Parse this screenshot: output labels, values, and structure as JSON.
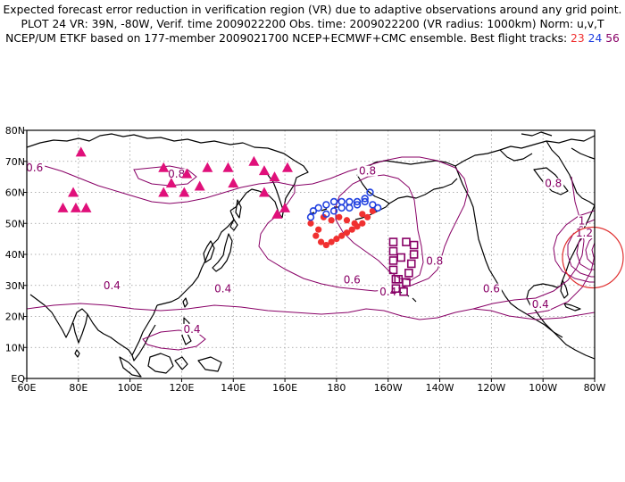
{
  "header": {
    "line1": "Expected forecast error reduction in verification region (VR) due to adaptive observations around any grid point.",
    "line2": "PLOT 24 VR: 39N, -80W, Verif. time 2009022200 Obs. time: 2009022200 (VR radius: 1000km) Norm: u,v,T",
    "line3_prefix": "NCEP/UM ETKF based on 177-member 2009021700 NCEP+ECMWF+CMC ensemble. Best flight tracks:",
    "track_a": "23",
    "track_b": "24",
    "track_c": "56"
  },
  "colors": {
    "track_a": "#f03030",
    "track_b": "#2040e0",
    "track_c": "#880066",
    "triangles": "#e0107a",
    "contours": "#880066",
    "vr_circle": "#e03030"
  },
  "map": {
    "lon_range": [
      60,
      280
    ],
    "lat_range": [
      0,
      80
    ],
    "x_ticks": [
      "60E",
      "80E",
      "100E",
      "120E",
      "140E",
      "160E",
      "180",
      "160W",
      "140W",
      "120W",
      "100W",
      "80W"
    ],
    "y_ticks": [
      "EQ",
      "10N",
      "20N",
      "30N",
      "40N",
      "50N",
      "60N",
      "70N",
      "80N"
    ],
    "contour_labels": [
      {
        "text": "0.6",
        "lon": 63,
        "lat": 67
      },
      {
        "text": "0.8",
        "lon": 118,
        "lat": 65
      },
      {
        "text": "0.4",
        "lon": 93,
        "lat": 29
      },
      {
        "text": "0.4",
        "lon": 136,
        "lat": 28
      },
      {
        "text": "0.4",
        "lon": 124,
        "lat": 15
      },
      {
        "text": "0.8",
        "lon": 192,
        "lat": 66
      },
      {
        "text": "0.6",
        "lon": 186,
        "lat": 31
      },
      {
        "text": "0.4",
        "lon": 200,
        "lat": 27
      },
      {
        "text": "0.8",
        "lon": 218,
        "lat": 37
      },
      {
        "text": "0.6",
        "lon": 240,
        "lat": 28
      },
      {
        "text": "0.4",
        "lon": 259,
        "lat": 23
      },
      {
        "text": "0.8",
        "lon": 264,
        "lat": 62
      },
      {
        "text": "1",
        "lon": 275,
        "lat": 50
      },
      {
        "text": "1.2",
        "lon": 276,
        "lat": 46
      }
    ],
    "vr_center": {
      "lon": 280,
      "lat": 39
    },
    "triangles": [
      [
        74,
        55
      ],
      [
        78,
        60
      ],
      [
        79,
        55
      ],
      [
        83,
        55
      ],
      [
        81,
        73
      ],
      [
        113,
        68
      ],
      [
        113,
        60
      ],
      [
        116,
        63
      ],
      [
        121,
        60
      ],
      [
        122,
        66
      ],
      [
        127,
        62
      ],
      [
        130,
        68
      ],
      [
        138,
        68
      ],
      [
        140,
        63
      ],
      [
        148,
        70
      ],
      [
        152,
        60
      ],
      [
        152,
        67
      ],
      [
        156,
        65
      ],
      [
        157,
        53
      ],
      [
        160,
        55
      ],
      [
        161,
        68
      ]
    ],
    "track_a": [
      [
        170,
        50
      ],
      [
        172,
        46
      ],
      [
        174,
        44
      ],
      [
        176,
        43
      ],
      [
        178,
        44
      ],
      [
        180,
        45
      ],
      [
        182,
        46
      ],
      [
        184,
        47
      ],
      [
        186,
        48
      ],
      [
        188,
        49
      ],
      [
        190,
        50
      ],
      [
        192,
        52
      ],
      [
        194,
        54
      ],
      [
        173,
        48
      ],
      [
        175,
        52
      ],
      [
        178,
        51
      ],
      [
        181,
        52
      ],
      [
        184,
        51
      ],
      [
        187,
        50
      ],
      [
        190,
        53
      ]
    ],
    "track_b": [
      [
        170,
        52
      ],
      [
        171,
        54
      ],
      [
        173,
        55
      ],
      [
        176,
        56
      ],
      [
        179,
        57
      ],
      [
        182,
        57
      ],
      [
        185,
        57
      ],
      [
        188,
        57
      ],
      [
        191,
        57
      ],
      [
        194,
        56
      ],
      [
        196,
        55
      ],
      [
        176,
        53
      ],
      [
        179,
        54
      ],
      [
        182,
        55
      ],
      [
        185,
        55
      ],
      [
        188,
        56
      ],
      [
        191,
        58
      ],
      [
        193,
        60
      ]
    ],
    "track_c": [
      [
        202,
        44
      ],
      [
        202,
        41
      ],
      [
        202,
        38
      ],
      [
        202,
        35
      ],
      [
        203,
        32
      ],
      [
        203,
        29
      ],
      [
        206,
        28
      ],
      [
        207,
        31
      ],
      [
        208,
        34
      ],
      [
        209,
        37
      ],
      [
        210,
        40
      ],
      [
        210,
        43
      ],
      [
        207,
        44
      ],
      [
        205,
        39
      ],
      [
        204,
        32
      ]
    ]
  }
}
